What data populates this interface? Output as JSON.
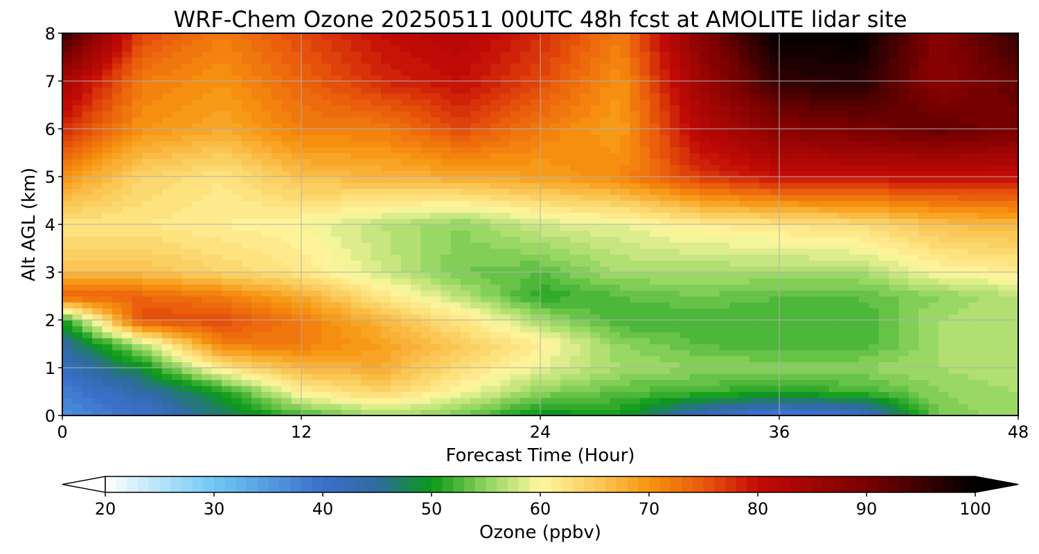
{
  "chart_data": {
    "type": "heatmap",
    "title": "WRF-Chem Ozone  20250511 00UTC 48h fcst at AMOLITE lidar site",
    "xlabel": "Forecast Time (Hour)",
    "ylabel": "Alt AGL (km)",
    "xlim": [
      0,
      48
    ],
    "ylim": [
      0,
      8
    ],
    "xticks": [
      0,
      12,
      24,
      36,
      48
    ],
    "xtick_labels": [
      "0",
      "12",
      "24",
      "36",
      "48"
    ],
    "yticks": [
      0,
      1,
      2,
      3,
      4,
      5,
      6,
      7,
      8
    ],
    "ytick_labels": [
      "0",
      "1",
      "2",
      "3",
      "4",
      "5",
      "6",
      "7",
      "8"
    ],
    "grid": true,
    "x": [
      0,
      4,
      8,
      12,
      16,
      20,
      24,
      28,
      32,
      36,
      40,
      44,
      48
    ],
    "y": [
      0,
      0.5,
      1,
      1.5,
      2,
      2.5,
      3,
      4,
      5,
      6,
      7,
      8
    ],
    "z": [
      [
        36,
        40,
        47,
        52,
        56,
        54,
        49,
        50,
        42,
        38,
        40,
        54,
        56
      ],
      [
        38,
        44,
        50,
        61,
        64,
        60,
        55,
        53,
        52,
        51,
        52,
        55,
        56
      ],
      [
        42,
        49,
        62,
        67,
        68,
        63,
        59,
        56,
        55,
        55,
        55,
        56,
        57
      ],
      [
        44,
        57,
        72,
        72,
        69,
        65,
        61,
        55,
        53,
        52,
        52,
        56,
        57
      ],
      [
        50,
        76,
        76,
        72,
        67,
        62,
        56,
        52,
        52,
        52,
        52,
        56,
        57
      ],
      [
        74,
        74,
        72,
        68,
        62,
        57,
        51,
        53,
        54,
        53,
        53,
        55,
        57
      ],
      [
        66,
        66,
        64,
        62,
        58,
        54,
        53,
        56,
        56,
        56,
        56,
        60,
        61
      ],
      [
        62,
        62,
        61,
        60,
        57,
        55,
        58,
        59,
        61,
        62,
        63,
        66,
        67
      ],
      [
        70,
        64,
        62,
        66,
        67,
        68,
        69,
        71,
        77,
        80,
        80,
        80,
        80
      ],
      [
        78,
        70,
        68,
        72,
        72,
        76,
        72,
        69,
        82,
        88,
        90,
        92,
        90
      ],
      [
        84,
        72,
        70,
        74,
        78,
        80,
        76,
        70,
        85,
        96,
        97,
        88,
        92
      ],
      [
        96,
        76,
        72,
        76,
        80,
        82,
        78,
        72,
        88,
        100,
        100,
        88,
        96
      ]
    ],
    "colorbar": {
      "label": "Ozone  (ppbv)",
      "min": 20,
      "max": 100,
      "ticks": [
        20,
        30,
        40,
        50,
        60,
        70,
        80,
        90,
        100
      ],
      "tick_labels": [
        "20",
        "30",
        "40",
        "50",
        "60",
        "70",
        "80",
        "90",
        "100"
      ],
      "extend": "both",
      "under_color": "#ffffff",
      "over_color": "#000000",
      "color_stops": [
        [
          20,
          "#ffffff"
        ],
        [
          30,
          "#6fc8f5"
        ],
        [
          40,
          "#3a6fcb"
        ],
        [
          45,
          "#2f6aa0"
        ],
        [
          50,
          "#0a9a16"
        ],
        [
          55,
          "#8fd45e"
        ],
        [
          60,
          "#fff7a0"
        ],
        [
          65,
          "#fbcc5c"
        ],
        [
          70,
          "#f7940f"
        ],
        [
          75,
          "#e9580c"
        ],
        [
          80,
          "#c40b06"
        ],
        [
          90,
          "#7a0000"
        ],
        [
          100,
          "#000000"
        ]
      ]
    }
  }
}
